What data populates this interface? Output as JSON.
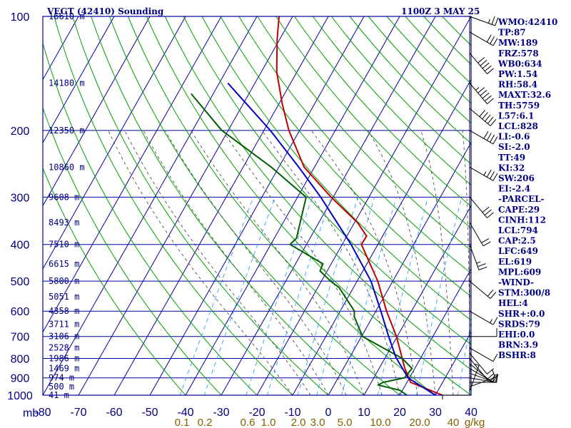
{
  "title_left": "VEGT (42410) Sounding",
  "title_right": "1100Z  3 MAY 25",
  "colors": {
    "frame": "#0000a0",
    "isotherm": "#0000a0",
    "dry_adiabat": "#00a000",
    "moist_adiabat": "#505050",
    "mixing_ratio": "#30a0ff",
    "temperature": "#c00000",
    "dewpoint": "#006000",
    "parcel": "#0000c0",
    "wind": "#000000"
  },
  "chart_data": {
    "type": "line",
    "title": "VEGT (42410) Sounding",
    "xlabel": "",
    "ylabel": "mb",
    "pressure_range": [
      1000,
      100
    ],
    "temperature_range": [
      -80,
      40
    ],
    "pressure_ticks": [
      "100",
      "200",
      "300",
      "400",
      "500",
      "600",
      "700",
      "800",
      "900",
      "1000"
    ],
    "pressure_unit": "mb",
    "temperature_ticks": [
      "-80",
      "-70",
      "-60",
      "-50",
      "-40",
      "-30",
      "-20",
      "-10",
      "0",
      "10",
      "20",
      "30",
      "40"
    ],
    "mixing_ratio_labels": [
      "0.1",
      "0.2",
      "0.6",
      "1.0",
      "2.0",
      "3.0",
      "5.0",
      "10.0",
      "20.0",
      "40",
      "g/kg"
    ],
    "heights": [
      {
        "p": 1000,
        "label": "41 m"
      },
      {
        "p": 950,
        "label": "500 m"
      },
      {
        "p": 900,
        "label": "974 m"
      },
      {
        "p": 850,
        "label": "1469 m"
      },
      {
        "p": 800,
        "label": "1986 m"
      },
      {
        "p": 750,
        "label": "2528 m"
      },
      {
        "p": 700,
        "label": "3106 m"
      },
      {
        "p": 650,
        "label": "3711 m"
      },
      {
        "p": 600,
        "label": "4358 m"
      },
      {
        "p": 550,
        "label": "5051 m"
      },
      {
        "p": 500,
        "label": "5800 m"
      },
      {
        "p": 450,
        "label": "6615 m"
      },
      {
        "p": 400,
        "label": "7510 m"
      },
      {
        "p": 350,
        "label": "8493 m"
      },
      {
        "p": 300,
        "label": "9608 m"
      },
      {
        "p": 250,
        "label": "10860 m"
      },
      {
        "p": 200,
        "label": "12350 m"
      },
      {
        "p": 150,
        "label": "14180 m"
      },
      {
        "p": 100,
        "label": "16610 m"
      }
    ],
    "series": [
      {
        "key": "temperature",
        "points": [
          [
            1000,
            32
          ],
          [
            925,
            21
          ],
          [
            850,
            17.2
          ],
          [
            700,
            9.8
          ],
          [
            600,
            3
          ],
          [
            500,
            -4.2
          ],
          [
            400,
            -14.6
          ],
          [
            380,
            -14.5
          ],
          [
            350,
            -19.2
          ],
          [
            300,
            -30.6
          ],
          [
            250,
            -42.9
          ],
          [
            200,
            -53
          ],
          [
            170,
            -59.1
          ],
          [
            140,
            -65.7
          ],
          [
            115,
            -70.7
          ],
          [
            100,
            -73.8
          ]
        ]
      },
      {
        "key": "dewpoint",
        "points": [
          [
            1000,
            22
          ],
          [
            970,
            19.2
          ],
          [
            940,
            12.3
          ],
          [
            925,
            13.3
          ],
          [
            900,
            18.6
          ],
          [
            850,
            19.2
          ],
          [
            800,
            14.9
          ],
          [
            700,
            0.3
          ],
          [
            620,
            -5.2
          ],
          [
            600,
            -6
          ],
          [
            520,
            -14
          ],
          [
            500,
            -17.4
          ],
          [
            470,
            -22
          ],
          [
            450,
            -22.3
          ],
          [
            400,
            -34.6
          ],
          [
            385,
            -33.8
          ],
          [
            300,
            -37.6
          ],
          [
            250,
            -52.1
          ],
          [
            200,
            -71.8
          ],
          [
            160,
            -86.2
          ]
        ]
      },
      {
        "key": "parcel",
        "points": [
          [
            1000,
            30
          ],
          [
            900,
            19.6
          ],
          [
            794,
            12.9
          ],
          [
            700,
            7.6
          ],
          [
            600,
            1.4
          ],
          [
            500,
            -6.1
          ],
          [
            400,
            -17.5
          ],
          [
            300,
            -33.5
          ],
          [
            250,
            -44.4
          ],
          [
            200,
            -58.2
          ],
          [
            150,
            -77.6
          ]
        ]
      }
    ],
    "winds": [
      {
        "p": 1000,
        "dir": 90,
        "spd": 5
      },
      {
        "p": 975,
        "dir": 200,
        "spd": 5
      },
      {
        "p": 950,
        "dir": 250,
        "spd": 10
      },
      {
        "p": 925,
        "dir": 270,
        "spd": 15
      },
      {
        "p": 900,
        "dir": 280,
        "spd": 15
      },
      {
        "p": 875,
        "dir": 290,
        "spd": 10
      },
      {
        "p": 850,
        "dir": 300,
        "spd": 10
      },
      {
        "p": 825,
        "dir": 310,
        "spd": 10
      },
      {
        "p": 800,
        "dir": 320,
        "spd": 10
      },
      {
        "p": 775,
        "dir": 320,
        "spd": 10
      },
      {
        "p": 750,
        "dir": 300,
        "spd": 10
      },
      {
        "p": 700,
        "dir": 270,
        "spd": 10
      },
      {
        "p": 600,
        "dir": 300,
        "spd": 15
      },
      {
        "p": 500,
        "dir": 310,
        "spd": 20
      },
      {
        "p": 400,
        "dir": 340,
        "spd": 25
      },
      {
        "p": 350,
        "dir": 330,
        "spd": 20
      },
      {
        "p": 300,
        "dir": 320,
        "spd": 30
      },
      {
        "p": 250,
        "dir": 300,
        "spd": 35
      },
      {
        "p": 200,
        "dir": 300,
        "spd": 40
      },
      {
        "p": 175,
        "dir": 310,
        "spd": 50
      },
      {
        "p": 150,
        "dir": 320,
        "spd": 55
      },
      {
        "p": 125,
        "dir": 320,
        "spd": 50
      },
      {
        "p": 110,
        "dir": 300,
        "spd": 30
      },
      {
        "p": 100,
        "dir": 290,
        "spd": 25
      }
    ]
  },
  "indices": [
    "WMO:42410",
    "TP:87",
    "MW:189",
    "FRZ:578",
    "WB0:634",
    "PW:1.54",
    "RH:58.4",
    "MAXT:32.6",
    "TH:5759",
    "L57:6.1",
    "LCL:828",
    "LI:-0.6",
    "SI:-2.0",
    "TT:49",
    "KI:32",
    "SW:206",
    "EI:-2.4",
    "-PARCEL-",
    "CAPE:29",
    "CINH:112",
    "LCL:794",
    "CAP:2.5",
    "LFC:649",
    "EL:619",
    "MPL:609",
    "-WIND-",
    "STM:300/8",
    "HEL:4",
    "SHR+:0.0",
    "SRDS:79",
    "EHI:0.0",
    "BRN:3.9",
    "BSHR:8"
  ]
}
